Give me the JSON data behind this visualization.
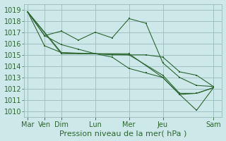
{
  "xlabel": "Pression niveau de la mer( hPa )",
  "bg_color": "#cce8e8",
  "grid_color": "#99bbbb",
  "line_color": "#2d6632",
  "ylim": [
    1009.5,
    1019.5
  ],
  "yticks": [
    1010,
    1011,
    1012,
    1013,
    1014,
    1015,
    1016,
    1017,
    1018,
    1019
  ],
  "xtick_positions": [
    0,
    1,
    2,
    4,
    6,
    8,
    11
  ],
  "xtick_labels": [
    "Mar",
    "Ven",
    "Dim",
    "Lun",
    "Mer",
    "Jeu",
    "Sam"
  ],
  "xlim": [
    -0.2,
    11.5
  ],
  "lines": [
    {
      "x": [
        0,
        1,
        2,
        3,
        4,
        5,
        6,
        7,
        8,
        9,
        10,
        11
      ],
      "y": [
        1018.8,
        1016.7,
        1017.1,
        1016.3,
        1017.0,
        1016.5,
        1018.2,
        1017.8,
        1014.3,
        1013.0,
        1012.3,
        1012.2
      ]
    },
    {
      "x": [
        0,
        1,
        2,
        3,
        4,
        5,
        6,
        7,
        8,
        9,
        10,
        11
      ],
      "y": [
        1018.8,
        1015.8,
        1015.2,
        1015.1,
        1015.1,
        1014.8,
        1013.8,
        1013.4,
        1013.0,
        1011.5,
        1011.6,
        1012.1
      ]
    },
    {
      "x": [
        0,
        2,
        4,
        6,
        8,
        9,
        10,
        11
      ],
      "y": [
        1018.8,
        1015.1,
        1015.1,
        1015.1,
        1013.0,
        1011.5,
        1010.1,
        1012.1
      ]
    },
    {
      "x": [
        0,
        2,
        4,
        6,
        8,
        9,
        10,
        11
      ],
      "y": [
        1018.8,
        1015.2,
        1015.1,
        1015.0,
        1013.2,
        1011.6,
        1011.6,
        1012.1
      ]
    },
    {
      "x": [
        0,
        1,
        2,
        3,
        4,
        5,
        6,
        7,
        8,
        9,
        10,
        11
      ],
      "y": [
        1018.8,
        1016.7,
        1015.9,
        1015.5,
        1015.1,
        1015.0,
        1015.0,
        1015.0,
        1014.8,
        1013.5,
        1013.2,
        1012.2
      ]
    }
  ],
  "marker_size": 2.0,
  "linewidth": 0.8,
  "font_size": 7,
  "tick_color": "#2d6632",
  "xlabel_fontsize": 8
}
